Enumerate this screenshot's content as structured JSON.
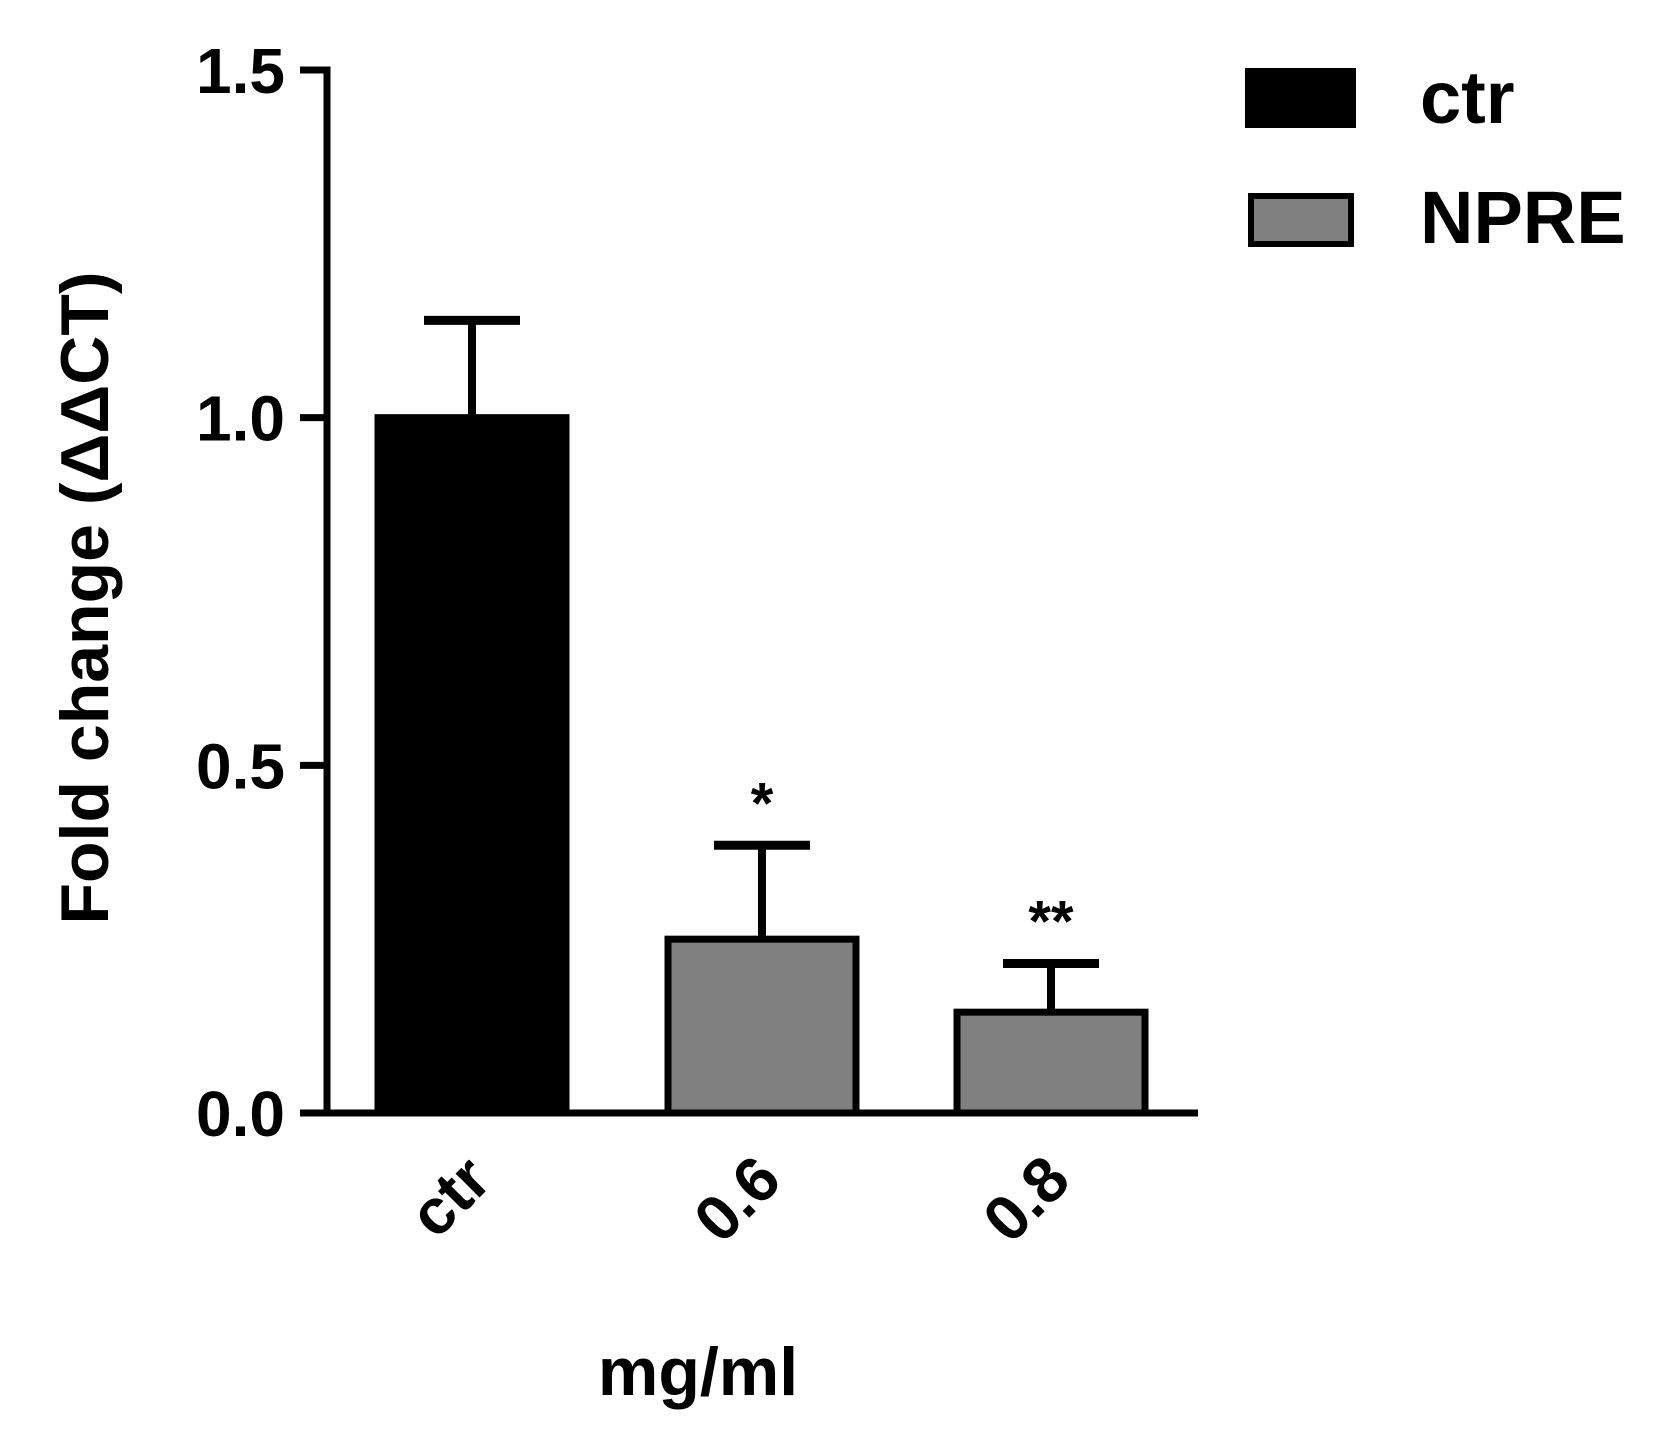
{
  "chart_data": {
    "type": "bar",
    "categories": [
      "ctr",
      "0.6",
      "0.8"
    ],
    "values": [
      1.0,
      0.25,
      0.145
    ],
    "errors": [
      0.14,
      0.135,
      0.07
    ],
    "significance": [
      "",
      "*",
      "**"
    ],
    "series_of_bar": [
      "ctr",
      "NPRE",
      "NPRE"
    ],
    "legend": [
      {
        "label": "ctr",
        "color": "#000000"
      },
      {
        "label": "NPRE",
        "color": "#808080"
      }
    ],
    "ylabel": "Fold change (ΔΔCT)",
    "xlabel": "mg/ml",
    "ylim": [
      0,
      1.5
    ],
    "yticks": [
      "0.0",
      "0.5",
      "1.0",
      "1.5"
    ],
    "ytick_values": [
      0,
      0.5,
      1.0,
      1.5
    ],
    "grid": false,
    "legend_position": "top-right"
  }
}
